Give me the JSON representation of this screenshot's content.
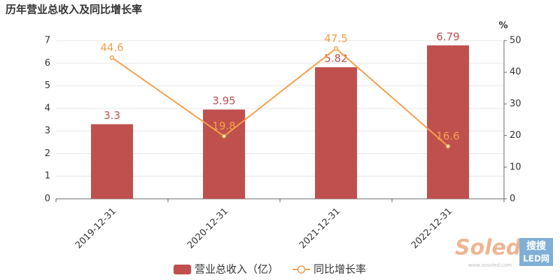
{
  "chart_data": {
    "type": "bar",
    "title": "历年营业总收入及同比增长率",
    "categories": [
      "2019-12-31",
      "2020-12-31",
      "2021-12-31",
      "2022-12-31"
    ],
    "series": [
      {
        "name": "营业总收入（亿）",
        "type": "bar",
        "color": "#c0504d",
        "values": [
          3.3,
          3.95,
          5.82,
          6.79
        ]
      },
      {
        "name": "同比增长率",
        "type": "line",
        "axis": "y2",
        "color": "#f5a04a",
        "values": [
          44.6,
          19.8,
          47.5,
          16.6
        ]
      }
    ],
    "ylim": [
      0,
      7
    ],
    "yticks": [
      0,
      1,
      2,
      3,
      4,
      5,
      6,
      7
    ],
    "y2lim": [
      0,
      50
    ],
    "y2ticks": [
      0,
      10,
      20,
      30,
      40,
      50
    ],
    "y2label": "%",
    "grid": true,
    "legend": "bottom",
    "watermark": {
      "brand": "Soled",
      "cn": "搜搜",
      "site": "LED网",
      "url": "www.sosoled.com"
    }
  }
}
